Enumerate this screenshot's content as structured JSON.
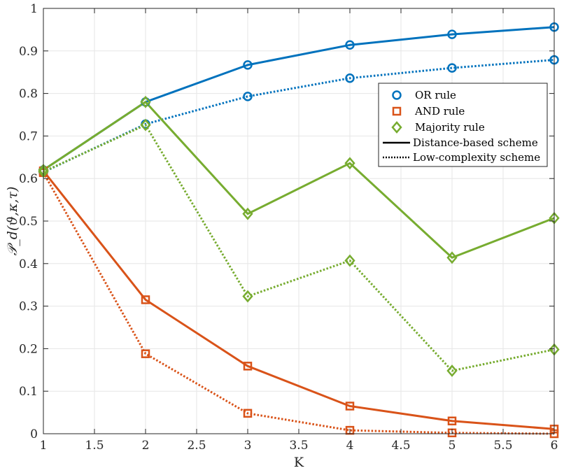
{
  "chart_data": {
    "type": "line",
    "title": "",
    "xlabel": "K",
    "ylabel": "𝒫_d(ϑ,κ,τ)",
    "xlim": [
      1,
      6
    ],
    "ylim": [
      0,
      1
    ],
    "grid": true,
    "legend_position": "right",
    "x": [
      1,
      2,
      3,
      4,
      5,
      6
    ],
    "x_ticks": [
      "1",
      "1.5",
      "2",
      "2.5",
      "3",
      "3.5",
      "4",
      "4.5",
      "5",
      "5.5",
      "6"
    ],
    "y_ticks": [
      "0",
      "0.1",
      "0.2",
      "0.3",
      "0.4",
      "0.5",
      "0.6",
      "0.7",
      "0.8",
      "0.9",
      "1"
    ],
    "series": [
      {
        "name": "OR rule",
        "rule": "or",
        "scheme": "distance",
        "marker": "circle",
        "color": "#0072BD",
        "values": [
          0.62,
          0.78,
          0.867,
          0.914,
          0.939,
          0.956
        ]
      },
      {
        "name": "OR rule",
        "rule": "or",
        "scheme": "low",
        "marker": "circle",
        "color": "#0072BD",
        "values": [
          0.615,
          0.728,
          0.793,
          0.836,
          0.86,
          0.879
        ]
      },
      {
        "name": "AND rule",
        "rule": "and",
        "scheme": "distance",
        "marker": "square",
        "color": "#D95319",
        "values": [
          0.618,
          0.315,
          0.159,
          0.065,
          0.03,
          0.011
        ]
      },
      {
        "name": "AND rule",
        "rule": "and",
        "scheme": "low",
        "marker": "square",
        "color": "#D95319",
        "values": [
          0.614,
          0.188,
          0.048,
          0.008,
          0.002,
          0.0
        ]
      },
      {
        "name": "Majority rule",
        "rule": "majority",
        "scheme": "distance",
        "marker": "diamond",
        "color": "#77AC30",
        "values": [
          0.62,
          0.78,
          0.517,
          0.636,
          0.414,
          0.507
        ]
      },
      {
        "name": "Majority rule",
        "rule": "majority",
        "scheme": "low",
        "marker": "diamond",
        "color": "#77AC30",
        "values": [
          0.616,
          0.726,
          0.323,
          0.407,
          0.148,
          0.198
        ]
      }
    ],
    "legend": [
      {
        "label": "OR rule",
        "marker": "circle",
        "color": "#0072BD"
      },
      {
        "label": "AND rule",
        "marker": "square",
        "color": "#D95319"
      },
      {
        "label": "Majority rule",
        "marker": "diamond",
        "color": "#77AC30"
      },
      {
        "label": "Distance-based scheme",
        "line": "solid",
        "color": "#000000"
      },
      {
        "label": "Low-complexity scheme",
        "line": "dotted",
        "color": "#000000"
      }
    ]
  }
}
